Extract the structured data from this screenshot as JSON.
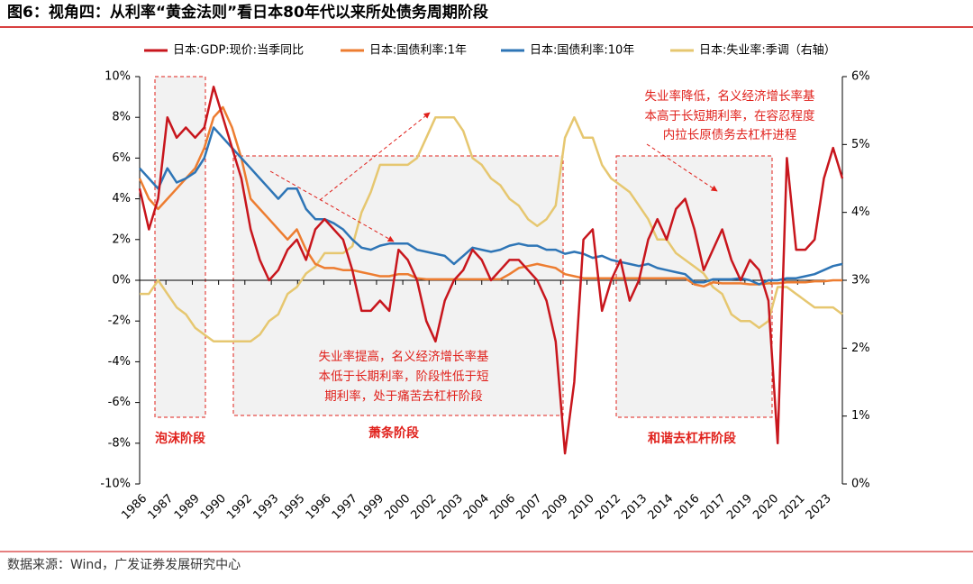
{
  "chart_data": {
    "type": "line",
    "title": "图6：视角四：从利率“黄金法则”看日本80年代以来所处债务周期阶段",
    "source": "数据来源：Wind，广发证券发展研究中心",
    "legend": "top",
    "x": [
      1986,
      1986.5,
      1987,
      1987.5,
      1988,
      1988.5,
      1989,
      1989.5,
      1990,
      1990.5,
      1991,
      1991.5,
      1992,
      1992.5,
      1993,
      1993.5,
      1994,
      1994.5,
      1995,
      1995.5,
      1996,
      1996.5,
      1997,
      1997.5,
      1998,
      1998.5,
      1999,
      1999.5,
      2000,
      2000.5,
      2001,
      2001.5,
      2002,
      2002.5,
      2003,
      2003.5,
      2004,
      2004.5,
      2005,
      2005.5,
      2006,
      2006.5,
      2007,
      2007.5,
      2008,
      2008.5,
      2009,
      2009.5,
      2010,
      2010.5,
      2011,
      2011.5,
      2012,
      2012.5,
      2013,
      2013.5,
      2014,
      2014.5,
      2015,
      2015.5,
      2016,
      2016.5,
      2017,
      2017.5,
      2018,
      2018.5,
      2019,
      2019.5,
      2020,
      2020.5,
      2021,
      2021.5,
      2022,
      2022.5,
      2023,
      2023.5,
      2024
    ],
    "xlim": [
      1986,
      2024
    ],
    "xticks": [
      {
        "value": 1986,
        "label": "1986"
      },
      {
        "value": 1987.42,
        "label": "1987"
      },
      {
        "value": 1988.85,
        "label": "1989"
      },
      {
        "value": 1990.27,
        "label": "1990"
      },
      {
        "value": 1991.69,
        "label": "1992"
      },
      {
        "value": 1993.12,
        "label": "1993"
      },
      {
        "value": 1994.54,
        "label": "1995"
      },
      {
        "value": 1995.96,
        "label": "1996"
      },
      {
        "value": 1997.38,
        "label": "1997"
      },
      {
        "value": 1998.81,
        "label": "1999"
      },
      {
        "value": 2000.23,
        "label": "2000"
      },
      {
        "value": 2001.65,
        "label": "2002"
      },
      {
        "value": 2003.08,
        "label": "2003"
      },
      {
        "value": 2004.5,
        "label": "2004"
      },
      {
        "value": 2005.92,
        "label": "2006"
      },
      {
        "value": 2007.35,
        "label": "2007"
      },
      {
        "value": 2008.77,
        "label": "2009"
      },
      {
        "value": 2010.19,
        "label": "2010"
      },
      {
        "value": 2011.62,
        "label": "2012"
      },
      {
        "value": 2013.04,
        "label": "2013"
      },
      {
        "value": 2014.46,
        "label": "2014"
      },
      {
        "value": 2015.88,
        "label": "2016"
      },
      {
        "value": 2017.31,
        "label": "2017"
      },
      {
        "value": 2018.73,
        "label": "2019"
      },
      {
        "value": 2020.15,
        "label": "2020"
      },
      {
        "value": 2021.58,
        "label": "2021"
      },
      {
        "value": 2023,
        "label": "2023"
      }
    ],
    "ylim": [
      -10,
      10
    ],
    "yticks": [
      {
        "value": -10,
        "label": "-10%"
      },
      {
        "value": -8,
        "label": "-8%"
      },
      {
        "value": -6,
        "label": "-6%"
      },
      {
        "value": -4,
        "label": "-4%"
      },
      {
        "value": -2,
        "label": "-2%"
      },
      {
        "value": 0,
        "label": "0%"
      },
      {
        "value": 2,
        "label": "2%"
      },
      {
        "value": 4,
        "label": "4%"
      },
      {
        "value": 6,
        "label": "6%"
      },
      {
        "value": 8,
        "label": "8%"
      },
      {
        "value": 10,
        "label": "10%"
      }
    ],
    "y2lim": [
      0,
      6
    ],
    "y2ticks": [
      {
        "value": 0,
        "label": "0%"
      },
      {
        "value": 1,
        "label": "1%"
      },
      {
        "value": 2,
        "label": "2%"
      },
      {
        "value": 3,
        "label": "3%"
      },
      {
        "value": 4,
        "label": "4%"
      },
      {
        "value": 5,
        "label": "5%"
      },
      {
        "value": 6,
        "label": "6%"
      }
    ],
    "series": [
      {
        "name": "日本:GDP:现价:当季同比",
        "color": "#c8161d",
        "values": [
          4.5,
          2.5,
          4,
          8,
          7,
          7.5,
          7,
          7.5,
          9.5,
          8,
          6.5,
          5,
          2.5,
          1,
          0,
          0.5,
          1.5,
          2,
          1,
          2.5,
          3,
          2.5,
          2,
          0.5,
          -1.5,
          -1.5,
          -1,
          -1.5,
          1.5,
          1,
          0,
          -2,
          -3,
          -1,
          0,
          0.5,
          1.5,
          1,
          0,
          0.5,
          1,
          1,
          0.5,
          0,
          -1,
          -3,
          -8.5,
          -5,
          2,
          2.5,
          -1.5,
          0,
          1,
          -1,
          0,
          2,
          3,
          2,
          3.5,
          4,
          2.5,
          0.5,
          1.5,
          2.5,
          1,
          0,
          1,
          0.5,
          -1,
          -8,
          6,
          1.5,
          1.5,
          2,
          5,
          6.5,
          5
        ]
      },
      {
        "name": "日本:国债利率:1年",
        "color": "#ed7d31",
        "values": [
          5,
          4,
          3.5,
          4,
          4.5,
          5,
          5.5,
          6.5,
          8,
          8.5,
          7.5,
          6,
          4,
          3.5,
          3,
          2.5,
          2,
          2.5,
          1.5,
          0.8,
          0.6,
          0.6,
          0.5,
          0.5,
          0.4,
          0.3,
          0.2,
          0.2,
          0.3,
          0.3,
          0.1,
          0.05,
          0.05,
          0.05,
          0.05,
          0.05,
          0.05,
          0.05,
          0.05,
          0.05,
          0.3,
          0.6,
          0.7,
          0.8,
          0.7,
          0.6,
          0.3,
          0.2,
          0.1,
          0.1,
          0.1,
          0.1,
          0.1,
          0.1,
          0.1,
          0.1,
          0.1,
          0.1,
          0.1,
          0.1,
          -0.2,
          -0.3,
          -0.1,
          -0.15,
          -0.15,
          -0.15,
          -0.2,
          -0.2,
          -0.15,
          -0.15,
          -0.1,
          -0.1,
          -0.1,
          -0.05,
          -0.05,
          0,
          0
        ]
      },
      {
        "name": "日本:国债利率:10年",
        "color": "#2e75b6",
        "values": [
          5.5,
          5,
          4.5,
          5.5,
          4.8,
          5,
          5.3,
          6,
          7.5,
          7,
          6.5,
          6,
          5.5,
          5,
          4.5,
          4,
          4.5,
          4.5,
          3.5,
          3,
          3,
          2.8,
          2.5,
          2,
          1.6,
          1.5,
          1.7,
          1.8,
          1.8,
          1.8,
          1.5,
          1.4,
          1.3,
          1.2,
          0.8,
          1.2,
          1.6,
          1.5,
          1.4,
          1.5,
          1.7,
          1.8,
          1.7,
          1.7,
          1.5,
          1.5,
          1.3,
          1.4,
          1.3,
          1.1,
          1.2,
          1,
          0.9,
          0.8,
          0.7,
          0.8,
          0.6,
          0.5,
          0.4,
          0.3,
          -0.1,
          -0.1,
          0.05,
          0.05,
          0.05,
          0.1,
          0,
          -0.2,
          0,
          0,
          0.1,
          0.1,
          0.2,
          0.3,
          0.5,
          0.7,
          0.8
        ]
      },
      {
        "name": "日本:失业率:季调（右轴）",
        "color": "#e6c770",
        "axis": "y2",
        "values": [
          2.8,
          2.8,
          3,
          2.8,
          2.6,
          2.5,
          2.3,
          2.2,
          2.1,
          2.1,
          2.1,
          2.1,
          2.1,
          2.2,
          2.4,
          2.5,
          2.8,
          2.9,
          3.1,
          3.2,
          3.4,
          3.4,
          3.4,
          3.5,
          4,
          4.3,
          4.7,
          4.7,
          4.7,
          4.7,
          4.8,
          5.1,
          5.4,
          5.4,
          5.4,
          5.2,
          4.8,
          4.7,
          4.5,
          4.4,
          4.2,
          4.1,
          3.9,
          3.8,
          3.9,
          4.1,
          5.1,
          5.4,
          5.1,
          5.1,
          4.7,
          4.5,
          4.4,
          4.3,
          4.1,
          3.9,
          3.6,
          3.6,
          3.4,
          3.3,
          3.2,
          3.1,
          2.9,
          2.8,
          2.5,
          2.4,
          2.4,
          2.3,
          2.4,
          2.9,
          2.9,
          2.8,
          2.7,
          2.6,
          2.6,
          2.6,
          2.5
        ]
      }
    ],
    "annotations": [
      [
        "失业率降低，名义经济增长率基",
        "本高于长短期利率，在容忍程度",
        "内拉长原债务去杠杆进程"
      ],
      [
        "失业率提高，名义经济增长率基",
        "本低于长期利率，阶段性低于短",
        "期利率，处于痛苦去杠杆阶段"
      ]
    ],
    "stages": [
      "泡沫阶段",
      "萧条阶段",
      "和谐去杠杆阶段"
    ]
  }
}
